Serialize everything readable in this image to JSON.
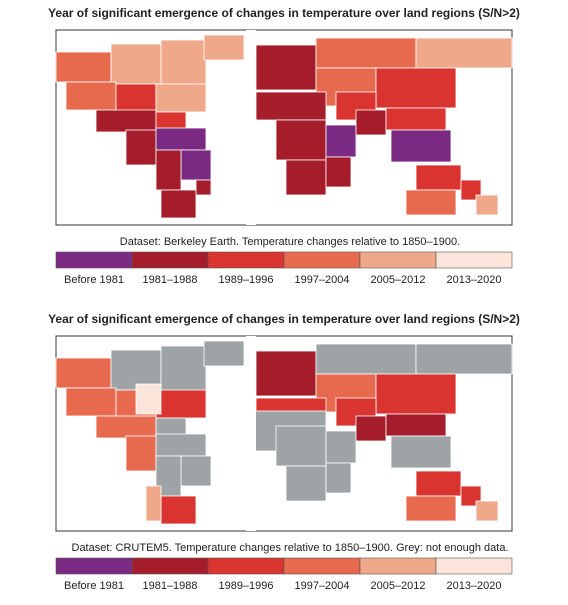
{
  "panels": [
    {
      "title": "Year of significant emergence of changes in temperature over land regions (S/N>2)",
      "caption": "Dataset: Berkeley Earth. Temperature changes relative to 1850–1900."
    },
    {
      "title": "Year of significant emergence of changes in temperature over land regions (S/N>2)",
      "caption": "Dataset: CRUTEM5. Temperature changes relative to 1850–1900. Grey: not enough data."
    }
  ],
  "legend": [
    {
      "label": "Before 1981",
      "color": "#7b2a83"
    },
    {
      "label": "1981–1988",
      "color": "#a51c2a"
    },
    {
      "label": "1989–1996",
      "color": "#d9342f"
    },
    {
      "label": "1997–2004",
      "color": "#e76a4f"
    },
    {
      "label": "2005–2012",
      "color": "#f0a88a"
    },
    {
      "label": "2013–2020",
      "color": "#fbe4da"
    }
  ],
  "no_data_color": "#9ea3a6"
}
